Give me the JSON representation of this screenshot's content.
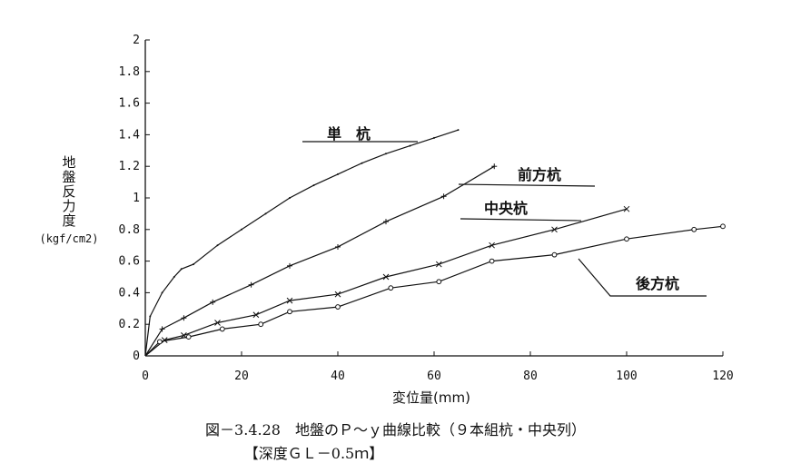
{
  "chart_data": {
    "type": "line",
    "ylabel_lines": [
      "地",
      "盤",
      "反",
      "力",
      "度"
    ],
    "ylabel_unit": "(kgf/cm2)",
    "xlabel": "変位量(mm)",
    "xlim": [
      0,
      120
    ],
    "ylim": [
      0,
      2
    ],
    "x_ticks": [
      "0",
      "20",
      "40",
      "60",
      "80",
      "100",
      "120"
    ],
    "y_ticks": [
      "0",
      "0.2",
      "0.4",
      "0.6",
      "0.8",
      "1",
      "1.2",
      "1.4",
      "1.6",
      "1.8",
      "2"
    ],
    "grid": false,
    "series": [
      {
        "name": "単　杭",
        "marker": "dot",
        "x": [
          0,
          1,
          3.5,
          6,
          7.5,
          10,
          15,
          20,
          25,
          30,
          35,
          40,
          45,
          50,
          55,
          60,
          65
        ],
        "y": [
          0,
          0.25,
          0.4,
          0.5,
          0.55,
          0.58,
          0.7,
          0.8,
          0.9,
          1.0,
          1.08,
          1.15,
          1.22,
          1.28,
          1.33,
          1.38,
          1.43
        ]
      },
      {
        "name": "前方杭",
        "marker": "plus",
        "x": [
          0,
          3.5,
          8,
          14,
          22,
          30,
          40,
          50,
          62,
          72.5
        ],
        "y": [
          0,
          0.17,
          0.24,
          0.34,
          0.45,
          0.57,
          0.69,
          0.85,
          1.01,
          1.2
        ]
      },
      {
        "name": "中央杭",
        "marker": "x",
        "x": [
          0,
          4,
          8,
          15,
          23,
          30,
          40,
          50,
          61,
          72,
          85,
          100
        ],
        "y": [
          0,
          0.1,
          0.13,
          0.21,
          0.26,
          0.35,
          0.39,
          0.5,
          0.58,
          0.7,
          0.8,
          0.93
        ]
      },
      {
        "name": "後方杭",
        "marker": "circle",
        "x": [
          0,
          3,
          9,
          16,
          24,
          30,
          40,
          51,
          61,
          72,
          85,
          100,
          114,
          120
        ],
        "y": [
          0,
          0.09,
          0.12,
          0.17,
          0.2,
          0.28,
          0.31,
          0.43,
          0.47,
          0.6,
          0.64,
          0.74,
          0.8,
          0.82
        ]
      }
    ]
  },
  "caption": {
    "line1": "図－3.4.28　地盤のＰ～ｙ曲線比較（９本組杭・中央列）",
    "line2": "【深度ＧＬ－0.5ｍ】"
  }
}
